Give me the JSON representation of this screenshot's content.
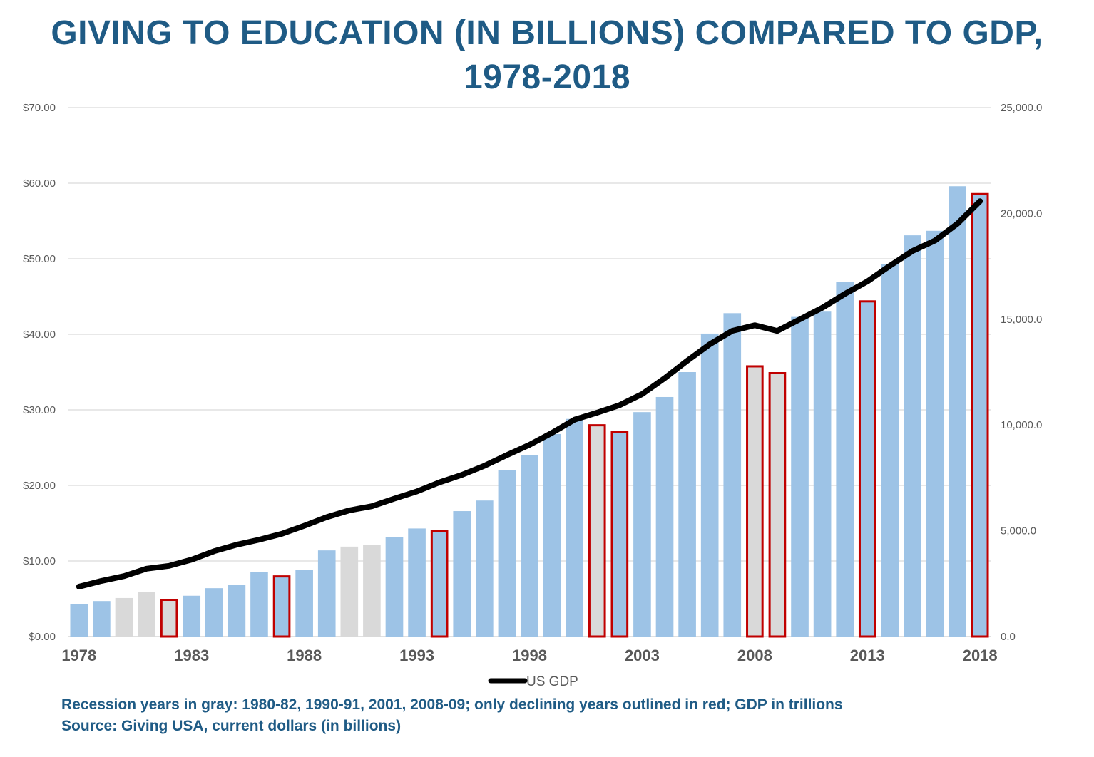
{
  "title": {
    "line1": "GIVING TO EDUCATION (IN BILLIONS) COMPARED TO GDP,",
    "line2": "1978-2018"
  },
  "footnotes": {
    "recession_note": "Recession years in gray: 1980-82, 1990-91, 2001, 2008-09; only declining years outlined in red; GDP in trillions",
    "source": "Source: Giving USA, current dollars (in billions)"
  },
  "chart_data": {
    "type": "bar",
    "years": [
      1978,
      1979,
      1980,
      1981,
      1982,
      1983,
      1984,
      1985,
      1986,
      1987,
      1988,
      1989,
      1990,
      1991,
      1992,
      1993,
      1994,
      1995,
      1996,
      1997,
      1998,
      1999,
      2000,
      2001,
      2002,
      2003,
      2004,
      2005,
      2006,
      2007,
      2008,
      2009,
      2010,
      2011,
      2012,
      2013,
      2014,
      2015,
      2016,
      2017,
      2018
    ],
    "x_tick_labels": [
      "1978",
      "1983",
      "1988",
      "1993",
      "1998",
      "2003",
      "2008",
      "2013",
      "2018"
    ],
    "series": [
      {
        "axis": "left",
        "kind": "bar",
        "values": [
          4.3,
          4.7,
          5.1,
          5.9,
          5.0,
          5.4,
          6.4,
          6.8,
          8.5,
          8.1,
          8.8,
          11.4,
          11.9,
          12.1,
          13.2,
          14.3,
          14.1,
          16.6,
          18.0,
          22.0,
          24.0,
          26.8,
          28.8,
          28.1,
          27.2,
          29.7,
          31.7,
          35.0,
          40.1,
          42.8,
          35.9,
          35.0,
          42.3,
          43.0,
          46.9,
          44.5,
          49.3,
          53.1,
          53.7,
          59.6,
          58.7
        ],
        "recession_years": [
          1980,
          1981,
          1982,
          1990,
          1991,
          2001,
          2008,
          2009
        ],
        "declining_years": [
          1982,
          1987,
          1994,
          2001,
          2002,
          2008,
          2009,
          2013,
          2018
        ]
      },
      {
        "name": "US GDP",
        "axis": "right",
        "kind": "line",
        "values": [
          2357,
          2632,
          2857,
          3207,
          3343,
          3634,
          4037,
          4339,
          4580,
          4855,
          5236,
          5642,
          5963,
          6158,
          6520,
          6859,
          7287,
          7640,
          8073,
          8578,
          9063,
          9631,
          10252,
          10582,
          10936,
          11458,
          12214,
          13037,
          13815,
          14452,
          14713,
          14449,
          14992,
          15543,
          16197,
          16785,
          17527,
          18225,
          18715,
          19519,
          20580
        ]
      }
    ],
    "left_axis": {
      "ylim": [
        0,
        70
      ],
      "ticks": [
        "$0.00",
        "$10.00",
        "$20.00",
        "$30.00",
        "$40.00",
        "$50.00",
        "$60.00",
        "$70.00"
      ]
    },
    "right_axis": {
      "ylim": [
        0,
        25000
      ],
      "ticks": [
        "0.0",
        "5,000.0",
        "10,000.0",
        "15,000.0",
        "20,000.0",
        "25,000.0"
      ]
    },
    "legend": {
      "position": "bottom",
      "label": "US GDP"
    },
    "grid": true,
    "colors": {
      "bar": "#9dc3e6",
      "recession_bar": "#d9d9d9",
      "declining_outline": "#c00000",
      "line": "#000000",
      "grid": "#d9d9d9",
      "title": "#1f5b85",
      "axis_text": "#595959"
    }
  }
}
